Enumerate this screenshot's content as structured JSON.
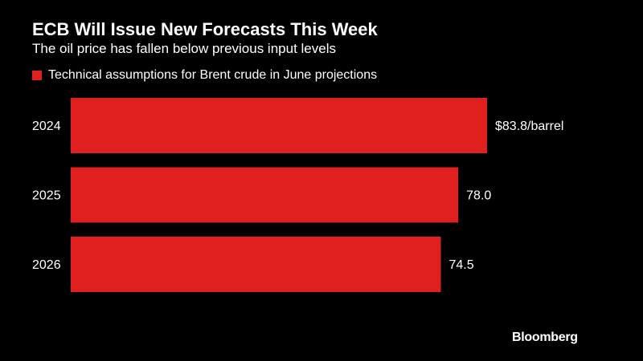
{
  "header": {
    "title": "ECB Will Issue New Forecasts This Week",
    "subtitle": "The oil price has fallen below previous input levels"
  },
  "colors": {
    "background": "#000000",
    "bar": "#e0201f",
    "text": "#ffffff"
  },
  "chart_data": {
    "type": "bar",
    "orientation": "horizontal",
    "categories": [
      "2024",
      "2025",
      "2026"
    ],
    "series": [
      {
        "name": "Technical assumptions for Brent crude in June projections",
        "values": [
          83.8,
          78.0,
          74.5
        ],
        "labels": [
          "$83.8/barrel",
          "78.0",
          "74.5"
        ]
      }
    ],
    "xlim": [
      0,
      83.8
    ],
    "grid": false,
    "legend_position": "top-left"
  },
  "footer": {
    "logo": "Bloomberg"
  }
}
